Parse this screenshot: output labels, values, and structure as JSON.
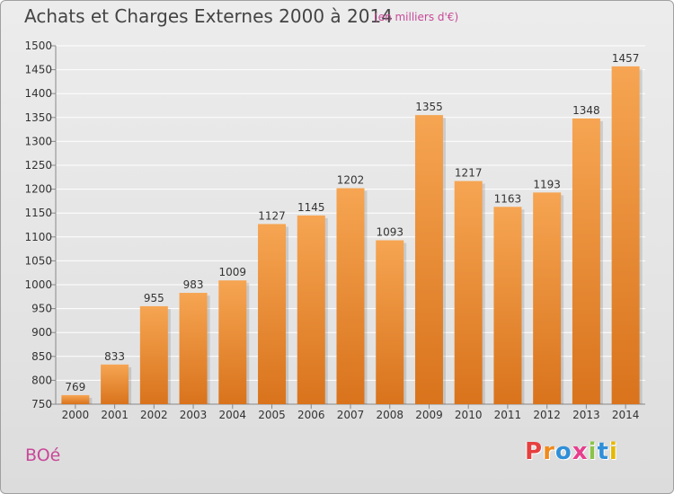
{
  "header": {
    "title": "Achats et Charges Externes 2000 à 2014",
    "unit": "(en milliers d'€)"
  },
  "footer": {
    "commune": "BOé",
    "logo_letters": [
      "P",
      "r",
      "o",
      "x",
      "i",
      "t",
      "i"
    ],
    "logo_colors": [
      "#e63f3f",
      "#f08a1c",
      "#2f8fd8",
      "#e63f8c",
      "#8bc34a",
      "#2f8fd8",
      "#e6b800"
    ]
  },
  "colors": {
    "bar_light": "#f6a552",
    "bar_dark": "#d9731c",
    "grid": "#ffffff",
    "title": "#444444",
    "accent": "#c84898"
  },
  "chart_data": {
    "type": "bar",
    "title": "Achats et Charges Externes 2000 à 2014",
    "subtitle": "(en milliers d'€)",
    "xlabel": "",
    "ylabel": "",
    "categories": [
      "2000",
      "2001",
      "2002",
      "2003",
      "2004",
      "2005",
      "2006",
      "2007",
      "2008",
      "2009",
      "2010",
      "2011",
      "2012",
      "2013",
      "2014"
    ],
    "values": [
      769,
      833,
      955,
      983,
      1009,
      1127,
      1145,
      1202,
      1093,
      1355,
      1217,
      1163,
      1193,
      1348,
      1457
    ],
    "ylim": [
      750,
      1500
    ],
    "yticks": [
      750,
      800,
      850,
      900,
      950,
      1000,
      1050,
      1100,
      1150,
      1200,
      1250,
      1300,
      1350,
      1400,
      1450,
      1500
    ],
    "grid": true,
    "legend": "none"
  }
}
